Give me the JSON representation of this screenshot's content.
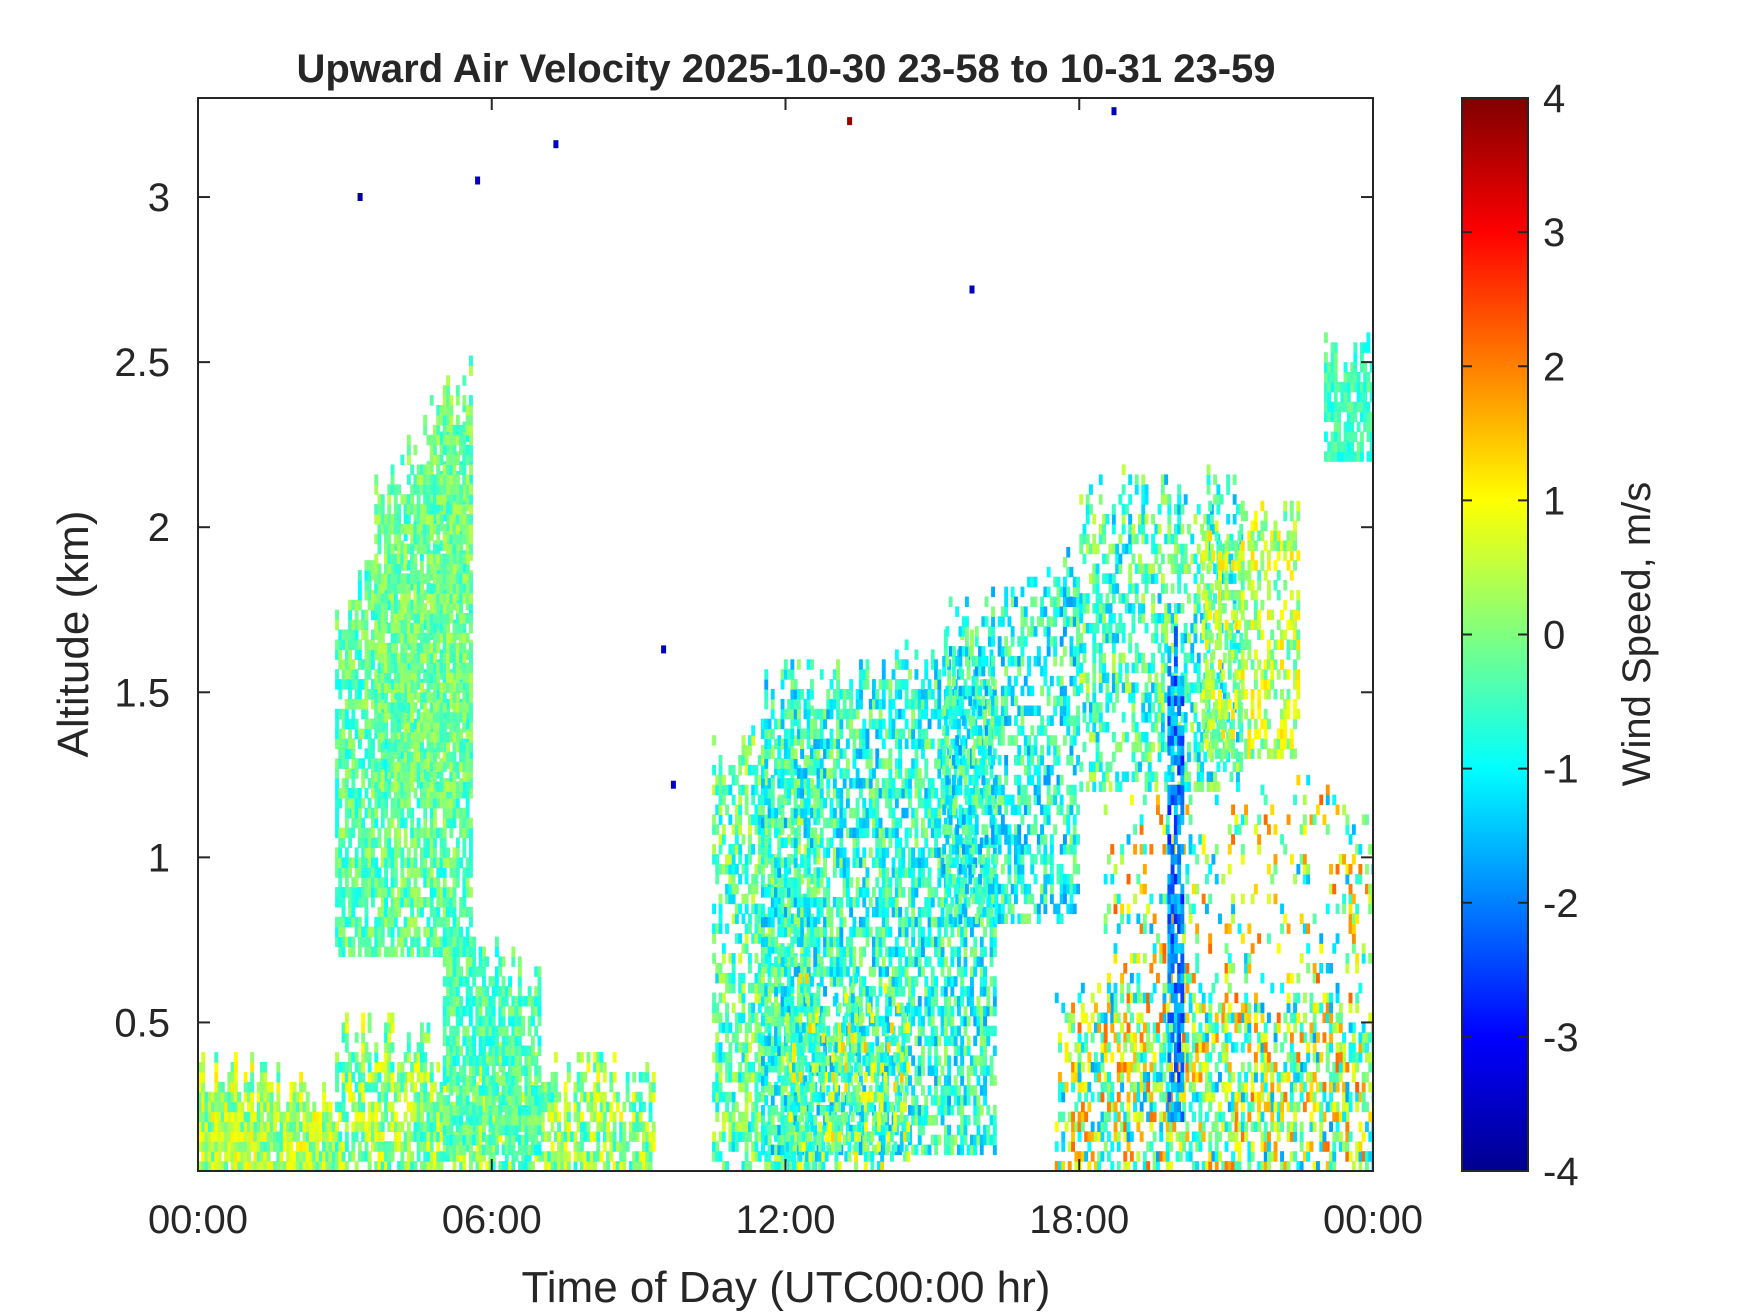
{
  "chart_data": {
    "type": "heatmap",
    "title": "Upward Air Velocity 2025-10-30 23-58 to 10-31 23-59",
    "xlabel": "Time of Day (UTC00:00 hr)",
    "ylabel": "Altitude (km)",
    "xlim_hours": [
      0,
      24
    ],
    "ylim_km": [
      0.05,
      3.3
    ],
    "x_ticks": [
      {
        "value": 0,
        "label": "00:00"
      },
      {
        "value": 6,
        "label": "06:00"
      },
      {
        "value": 12,
        "label": "12:00"
      },
      {
        "value": 18,
        "label": "18:00"
      },
      {
        "value": 24,
        "label": "00:00"
      }
    ],
    "y_ticks": [
      {
        "value": 0.5,
        "label": "0.5"
      },
      {
        "value": 1,
        "label": "1"
      },
      {
        "value": 1.5,
        "label": "1.5"
      },
      {
        "value": 2,
        "label": "2"
      },
      {
        "value": 2.5,
        "label": "2.5"
      },
      {
        "value": 3,
        "label": "3"
      }
    ],
    "colorbar": {
      "label": "Wind Speed, m/s",
      "range": [
        -4,
        4
      ],
      "colormap": "jet",
      "ticks": [
        {
          "value": 4,
          "label": "4"
        },
        {
          "value": 3,
          "label": "3"
        },
        {
          "value": 2,
          "label": "2"
        },
        {
          "value": 1,
          "label": "1"
        },
        {
          "value": 0,
          "label": "0"
        },
        {
          "value": -1,
          "label": "-1"
        },
        {
          "value": -2,
          "label": "-2"
        },
        {
          "value": -3,
          "label": "-3"
        },
        {
          "value": -4,
          "label": "-4"
        }
      ]
    },
    "grid": false,
    "regions": [
      {
        "t0": 0.0,
        "t1": 2.8,
        "zmin": 0.05,
        "ztop": [
          0.35,
          0.25
        ],
        "v": 0.3,
        "spread": 0.9,
        "density": 0.95
      },
      {
        "t0": 2.8,
        "t1": 5.6,
        "zmin": 0.7,
        "ztop": [
          1.7,
          2.35
        ],
        "v": -0.3,
        "spread": 0.7,
        "density": 0.75
      },
      {
        "t0": 3.6,
        "t1": 5.6,
        "zmin": 1.2,
        "ztop": [
          2.1,
          2.45
        ],
        "v": -0.1,
        "spread": 0.6,
        "density": 0.7
      },
      {
        "t0": 2.8,
        "t1": 9.3,
        "zmin": 0.05,
        "ztop": [
          0.45,
          0.3
        ],
        "v": 0.1,
        "spread": 1.0,
        "density": 0.7
      },
      {
        "t0": 5.0,
        "t1": 7.0,
        "zmin": 0.1,
        "ztop": [
          0.75,
          0.6
        ],
        "v": -0.4,
        "spread": 0.6,
        "density": 0.75
      },
      {
        "t0": 10.5,
        "t1": 12.7,
        "zmin": 0.05,
        "ztop": [
          1.3,
          1.4
        ],
        "v": -0.3,
        "spread": 1.0,
        "density": 0.55
      },
      {
        "t0": 11.5,
        "t1": 16.3,
        "zmin": 0.1,
        "ztop": [
          1.5,
          1.6
        ],
        "v": -0.7,
        "spread": 1.0,
        "density": 0.6
      },
      {
        "t0": 12.0,
        "t1": 14.5,
        "zmin": 0.05,
        "ztop": [
          0.6,
          0.5
        ],
        "v": 0.0,
        "spread": 1.5,
        "density": 0.45
      },
      {
        "t0": 15.2,
        "t1": 18.0,
        "zmin": 0.8,
        "ztop": [
          1.7,
          1.9
        ],
        "v": -0.8,
        "spread": 1.0,
        "density": 0.5
      },
      {
        "t0": 18.0,
        "t1": 21.3,
        "zmin": 1.2,
        "ztop": [
          2.1,
          2.1
        ],
        "v": -0.5,
        "spread": 1.1,
        "density": 0.45
      },
      {
        "t0": 20.5,
        "t1": 22.5,
        "zmin": 1.3,
        "ztop": [
          2.0,
          2.0
        ],
        "v": 0.4,
        "spread": 0.9,
        "density": 0.5
      },
      {
        "t0": 23.0,
        "t1": 24.0,
        "zmin": 2.2,
        "ztop": [
          2.5,
          2.5
        ],
        "v": -0.5,
        "spread": 0.5,
        "density": 0.8
      },
      {
        "t0": 17.5,
        "t1": 24.0,
        "zmin": 0.05,
        "ztop": [
          0.6,
          0.5
        ],
        "v": 0.2,
        "spread": 2.0,
        "density": 0.45
      },
      {
        "t0": 18.5,
        "t1": 24.0,
        "zmin": 0.2,
        "ztop": [
          1.1,
          1.2
        ],
        "v": 0.3,
        "spread": 2.0,
        "density": 0.18
      },
      {
        "t0": 19.8,
        "t1": 20.1,
        "zmin": 0.2,
        "ztop": [
          1.6,
          1.6
        ],
        "v": -2.0,
        "spread": 0.8,
        "density": 0.7
      }
    ],
    "isolated_points": [
      {
        "t": 3.3,
        "z": 3.0,
        "v": -3.8
      },
      {
        "t": 5.7,
        "z": 3.05,
        "v": -3.5
      },
      {
        "t": 7.3,
        "z": 3.16,
        "v": -3.5
      },
      {
        "t": 13.3,
        "z": 3.23,
        "v": 3.8
      },
      {
        "t": 18.7,
        "z": 3.26,
        "v": -3.5
      },
      {
        "t": 15.8,
        "z": 2.72,
        "v": -3.5
      },
      {
        "t": 9.5,
        "z": 1.63,
        "v": -3.5
      },
      {
        "t": 9.7,
        "z": 1.22,
        "v": -3.5
      }
    ]
  }
}
